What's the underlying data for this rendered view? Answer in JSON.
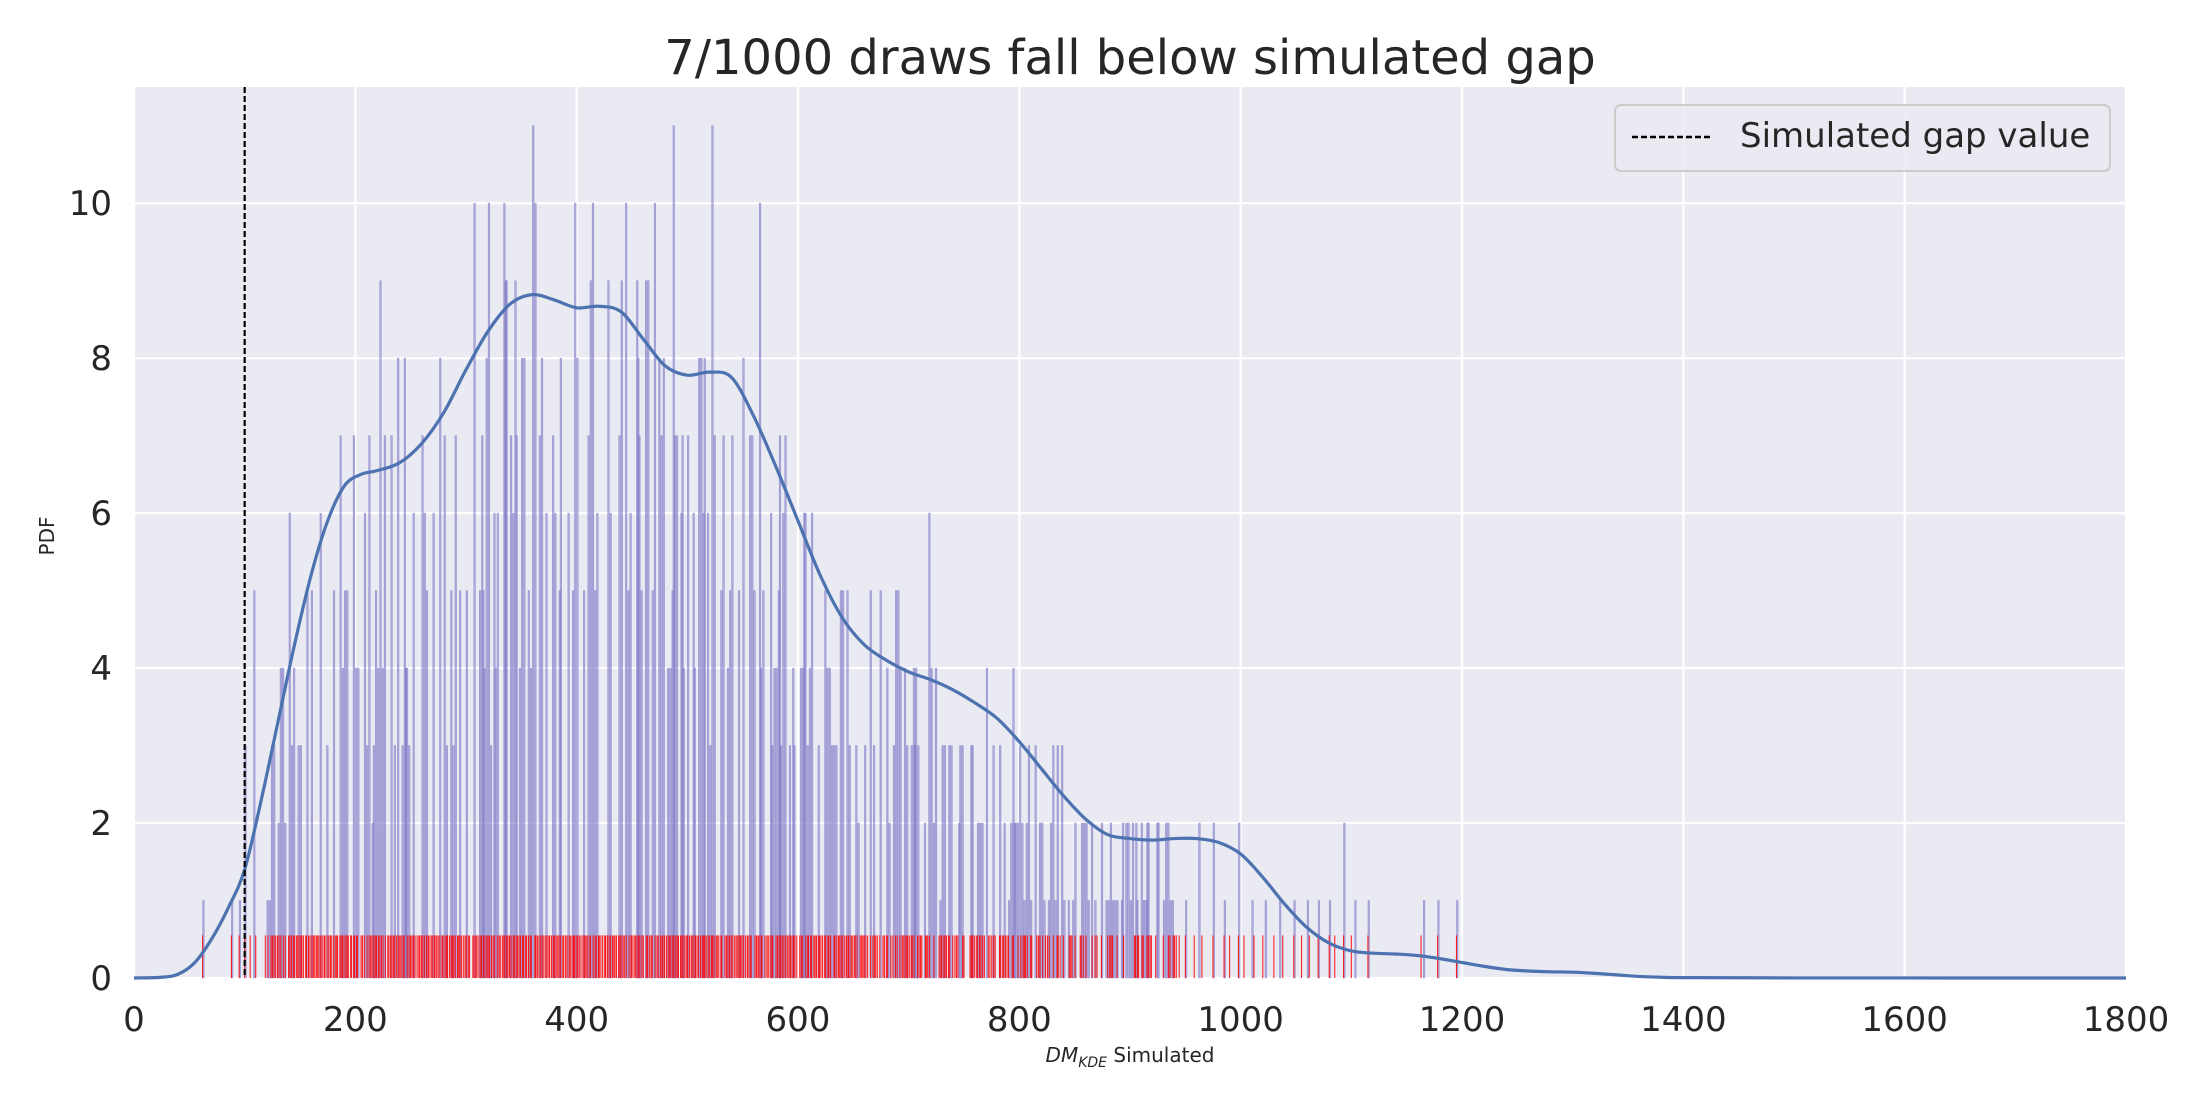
{
  "chart_data": {
    "type": "histogram",
    "title": "7/1000 draws fall below simulated gap",
    "xlabel_main": "DM",
    "xlabel_sub": "KDE",
    "xlabel_rest": " Simulated",
    "ylabel": "PDF",
    "xlim": [
      0,
      1800
    ],
    "ylim": [
      0,
      11.5
    ],
    "x_ticks": [
      0,
      200,
      400,
      600,
      800,
      1000,
      1200,
      1400,
      1600,
      1800
    ],
    "y_ticks": [
      0,
      2,
      4,
      6,
      8,
      10
    ],
    "grid": true,
    "legend": {
      "position": "upper-right",
      "label": "Simulated gap value"
    },
    "simulated_gap_value": 100,
    "colors": {
      "background": "#eaeaf2",
      "grid": "#ffffff",
      "histogram": "#7b76c6",
      "kde": "#4c72b0",
      "rug": "#ff0000",
      "gap_line": "#000000",
      "text": "#262626"
    },
    "histogram_bar_width": 2,
    "histogram_peaks": [
      [
        62,
        1
      ],
      [
        88,
        1
      ],
      [
        95,
        1
      ],
      [
        100,
        3
      ],
      [
        108,
        5
      ],
      [
        122,
        1
      ],
      [
        130,
        2
      ],
      [
        140,
        6
      ],
      [
        150,
        3
      ],
      [
        160,
        5
      ],
      [
        168,
        6
      ],
      [
        180,
        5
      ],
      [
        190,
        5
      ],
      [
        200,
        4
      ],
      [
        208,
        6
      ],
      [
        215,
        2
      ],
      [
        222,
        9
      ],
      [
        235,
        3
      ],
      [
        245,
        4
      ],
      [
        252,
        6
      ],
      [
        260,
        7
      ],
      [
        270,
        6
      ],
      [
        280,
        7
      ],
      [
        290,
        7
      ],
      [
        300,
        5
      ],
      [
        307,
        10
      ],
      [
        315,
        5
      ],
      [
        325,
        6
      ],
      [
        335,
        9
      ],
      [
        345,
        7
      ],
      [
        352,
        8
      ],
      [
        360,
        11
      ],
      [
        368,
        8
      ],
      [
        378,
        7
      ],
      [
        385,
        8
      ],
      [
        392,
        6
      ],
      [
        400,
        8
      ],
      [
        410,
        7
      ],
      [
        418,
        6
      ],
      [
        428,
        9
      ],
      [
        438,
        7
      ],
      [
        448,
        6
      ],
      [
        455,
        8
      ],
      [
        462,
        9
      ],
      [
        470,
        10
      ],
      [
        478,
        8
      ],
      [
        487,
        11
      ],
      [
        495,
        7
      ],
      [
        505,
        6
      ],
      [
        515,
        8
      ],
      [
        522,
        11
      ],
      [
        532,
        7
      ],
      [
        540,
        7
      ],
      [
        550,
        8
      ],
      [
        558,
        7
      ],
      [
        565,
        10
      ],
      [
        575,
        6
      ],
      [
        583,
        7
      ],
      [
        595,
        4
      ],
      [
        605,
        6
      ],
      [
        618,
        3
      ],
      [
        628,
        4
      ],
      [
        640,
        5
      ],
      [
        652,
        3
      ],
      [
        665,
        5
      ],
      [
        680,
        4
      ],
      [
        692,
        4
      ],
      [
        705,
        3
      ],
      [
        718,
        6
      ],
      [
        730,
        3
      ],
      [
        745,
        2
      ],
      [
        757,
        3
      ],
      [
        770,
        4
      ],
      [
        782,
        3
      ],
      [
        795,
        2
      ],
      [
        808,
        3
      ],
      [
        820,
        2
      ],
      [
        838,
        3
      ],
      [
        850,
        2
      ],
      [
        865,
        2
      ],
      [
        880,
        1
      ],
      [
        893,
        2
      ],
      [
        905,
        2
      ],
      [
        915,
        2
      ],
      [
        925,
        2
      ],
      [
        938,
        1
      ],
      [
        950,
        1
      ],
      [
        962,
        2
      ],
      [
        975,
        2
      ],
      [
        985,
        1
      ],
      [
        998,
        2
      ],
      [
        1010,
        1
      ],
      [
        1022,
        1
      ],
      [
        1035,
        1
      ],
      [
        1048,
        1
      ],
      [
        1060,
        1
      ],
      [
        1070,
        1
      ],
      [
        1080,
        1
      ],
      [
        1093,
        2
      ],
      [
        1103,
        1
      ],
      [
        1115,
        1
      ],
      [
        1165,
        1
      ],
      [
        1178,
        1
      ],
      [
        1195,
        1
      ]
    ],
    "histogram_seed": 17,
    "kde_points": [
      [
        0,
        0
      ],
      [
        25,
        0.01
      ],
      [
        40,
        0.05
      ],
      [
        55,
        0.2
      ],
      [
        70,
        0.5
      ],
      [
        85,
        0.9
      ],
      [
        100,
        1.4
      ],
      [
        115,
        2.3
      ],
      [
        130,
        3.3
      ],
      [
        145,
        4.3
      ],
      [
        160,
        5.2
      ],
      [
        175,
        5.9
      ],
      [
        190,
        6.35
      ],
      [
        205,
        6.5
      ],
      [
        220,
        6.55
      ],
      [
        240,
        6.65
      ],
      [
        260,
        6.9
      ],
      [
        280,
        7.3
      ],
      [
        300,
        7.85
      ],
      [
        320,
        8.35
      ],
      [
        340,
        8.7
      ],
      [
        360,
        8.82
      ],
      [
        380,
        8.75
      ],
      [
        400,
        8.65
      ],
      [
        420,
        8.67
      ],
      [
        440,
        8.6
      ],
      [
        460,
        8.25
      ],
      [
        480,
        7.9
      ],
      [
        500,
        7.78
      ],
      [
        520,
        7.82
      ],
      [
        540,
        7.75
      ],
      [
        560,
        7.25
      ],
      [
        580,
        6.6
      ],
      [
        600,
        5.9
      ],
      [
        620,
        5.2
      ],
      [
        640,
        4.65
      ],
      [
        660,
        4.3
      ],
      [
        680,
        4.1
      ],
      [
        700,
        3.95
      ],
      [
        720,
        3.85
      ],
      [
        740,
        3.72
      ],
      [
        760,
        3.55
      ],
      [
        780,
        3.35
      ],
      [
        800,
        3.05
      ],
      [
        820,
        2.7
      ],
      [
        840,
        2.35
      ],
      [
        860,
        2.05
      ],
      [
        880,
        1.85
      ],
      [
        900,
        1.8
      ],
      [
        920,
        1.78
      ],
      [
        940,
        1.8
      ],
      [
        960,
        1.8
      ],
      [
        980,
        1.75
      ],
      [
        1000,
        1.6
      ],
      [
        1020,
        1.3
      ],
      [
        1040,
        0.95
      ],
      [
        1060,
        0.65
      ],
      [
        1080,
        0.45
      ],
      [
        1100,
        0.35
      ],
      [
        1120,
        0.32
      ],
      [
        1140,
        0.31
      ],
      [
        1160,
        0.29
      ],
      [
        1180,
        0.25
      ],
      [
        1200,
        0.2
      ],
      [
        1220,
        0.15
      ],
      [
        1240,
        0.11
      ],
      [
        1260,
        0.09
      ],
      [
        1280,
        0.08
      ],
      [
        1300,
        0.075
      ],
      [
        1320,
        0.06
      ],
      [
        1340,
        0.04
      ],
      [
        1360,
        0.02
      ],
      [
        1380,
        0.01
      ],
      [
        1400,
        0.005
      ],
      [
        1500,
        0.001
      ],
      [
        1800,
        0
      ]
    ],
    "rug_height": 0.55,
    "rug_dense_range": [
      118,
      945
    ],
    "rug_sparse_values": [
      62,
      88,
      95,
      100,
      105,
      110,
      950,
      958,
      965,
      975,
      985,
      990,
      998,
      1003,
      1012,
      1020,
      1030,
      1038,
      1048,
      1055,
      1062,
      1070,
      1080,
      1085,
      1093,
      1100,
      1115,
      1163,
      1178,
      1195
    ]
  }
}
